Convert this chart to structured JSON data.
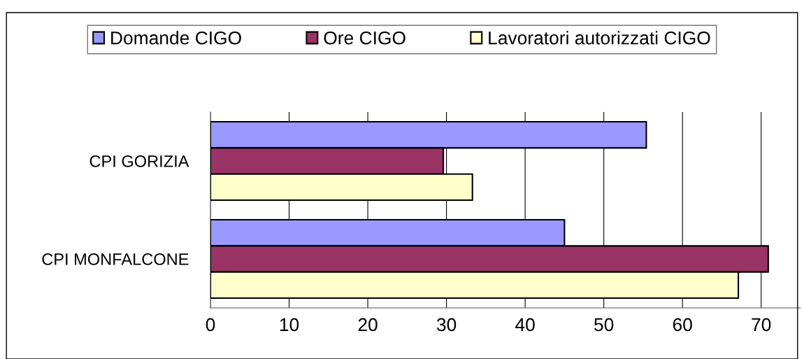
{
  "chart_data": {
    "type": "bar",
    "orientation": "horizontal",
    "categories": [
      "CPI GORIZIA",
      "CPI MONFALCONE"
    ],
    "series": [
      {
        "name": "Domande CIGO",
        "color": "#9999ff",
        "values": [
          55.4,
          45.0
        ]
      },
      {
        "name": "Ore CIGO",
        "color": "#993366",
        "values": [
          29.6,
          70.9
        ]
      },
      {
        "name": "Lavoratori autorizzati CIGO",
        "color": "#ffffcc",
        "values": [
          33.3,
          67.1
        ]
      }
    ],
    "xlim": [
      0,
      75
    ],
    "xticks": [
      0,
      10,
      20,
      30,
      40,
      50,
      60,
      70
    ],
    "grid": "x",
    "legend": "top"
  }
}
